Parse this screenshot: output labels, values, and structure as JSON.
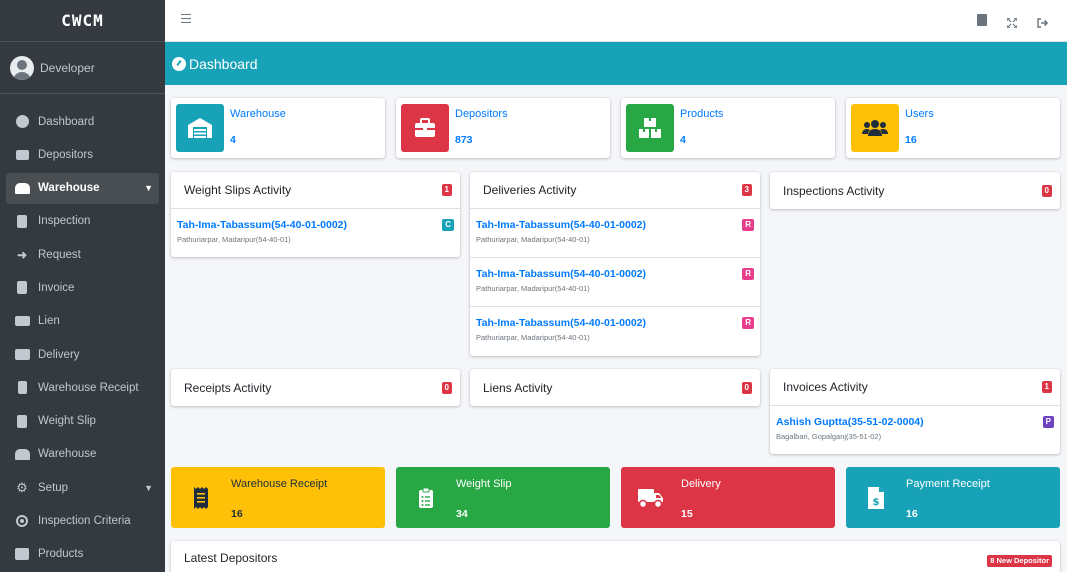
{
  "brand": "CWCM",
  "user": "Developer",
  "nav": [
    {
      "label": "Dashboard",
      "icon": "dashboard-icon"
    },
    {
      "label": "Depositors",
      "icon": "briefcase-icon"
    },
    {
      "label": "Warehouse",
      "icon": "warehouse-icon",
      "active": true,
      "caret": "chevron-down-icon"
    },
    {
      "label": "Inspection",
      "icon": "clipboard-check-icon"
    },
    {
      "label": "Request",
      "icon": "sign-in-icon"
    },
    {
      "label": "Invoice",
      "icon": "file-invoice-icon"
    },
    {
      "label": "Lien",
      "icon": "money-check-icon"
    },
    {
      "label": "Delivery",
      "icon": "truck-icon"
    },
    {
      "label": "Warehouse Receipt",
      "icon": "receipt-icon"
    },
    {
      "label": "Weight Slip",
      "icon": "clipboard-list-icon"
    },
    {
      "label": "Warehouse",
      "icon": "warehouse-icon"
    },
    {
      "label": "Setup",
      "icon": "cogs-icon",
      "caret": "chevron-down-icon"
    },
    {
      "label": "Inspection Criteria",
      "icon": "dot-circle-icon"
    },
    {
      "label": "Products",
      "icon": "boxes-icon"
    }
  ],
  "page_title": "Dashboard",
  "info_boxes": [
    {
      "label": "Warehouse",
      "value": "4",
      "color": "#17a2b8",
      "icon": "warehouse-icon"
    },
    {
      "label": "Depositors",
      "value": "873",
      "color": "#dc3545",
      "icon": "briefcase-icon"
    },
    {
      "label": "Products",
      "value": "4",
      "color": "#28a745",
      "icon": "boxes-icon"
    },
    {
      "label": "Users",
      "value": "16",
      "color": "#ffc107",
      "icon": "users-icon"
    }
  ],
  "activities": {
    "weight_slips": {
      "title": "Weight Slips Activity",
      "count": "1",
      "items": [
        {
          "title": "Tah-Ima-Tabassum(54-40-01-0002)",
          "sub": "Pathuriarpar, Madaripur(54-40-01)",
          "badge": "C",
          "badge_color": "#17a2b8"
        }
      ]
    },
    "deliveries": {
      "title": "Deliveries Activity",
      "count": "3",
      "items": [
        {
          "title": "Tah-Ima-Tabassum(54-40-01-0002)",
          "sub": "Pathuriarpar, Madaripur(54-40-01)",
          "badge": "R",
          "badge_color": "#e83e8c"
        },
        {
          "title": "Tah-Ima-Tabassum(54-40-01-0002)",
          "sub": "Pathuriarpar, Madaripur(54-40-01)",
          "badge": "R",
          "badge_color": "#e83e8c"
        },
        {
          "title": "Tah-Ima-Tabassum(54-40-01-0002)",
          "sub": "Pathuriarpar, Madaripur(54-40-01)",
          "badge": "R",
          "badge_color": "#e83e8c"
        }
      ]
    },
    "inspections": {
      "title": "Inspections Activity",
      "count": "0"
    },
    "receipts": {
      "title": "Receipts Activity",
      "count": "0"
    },
    "liens": {
      "title": "Liens Activity",
      "count": "0"
    },
    "invoices": {
      "title": "Invoices Activity",
      "count": "1",
      "items": [
        {
          "title": "Ashish Guptta(35-51-02-0004)",
          "sub": "Bagalbari, Gopalganj(35-51-02)",
          "badge": "P",
          "badge_color": "#6f42c1"
        }
      ]
    }
  },
  "small_boxes": [
    {
      "label": "Warehouse Receipt",
      "value": "16",
      "color": "#ffc107",
      "text_color": "#1f2d3d",
      "icon": "receipt-icon"
    },
    {
      "label": "Weight Slip",
      "value": "34",
      "color": "#28a745",
      "text_color": "#ffffff",
      "icon": "clipboard-list-icon"
    },
    {
      "label": "Delivery",
      "value": "15",
      "color": "#dc3545",
      "text_color": "#ffffff",
      "icon": "truck-icon"
    },
    {
      "label": "Payment Receipt",
      "value": "16",
      "color": "#17a2b8",
      "text_color": "#ffffff",
      "icon": "file-invoice-dollar-icon"
    }
  ],
  "latest_depositors": {
    "title": "Latest Depositors",
    "badge": "8 New Depositor"
  }
}
